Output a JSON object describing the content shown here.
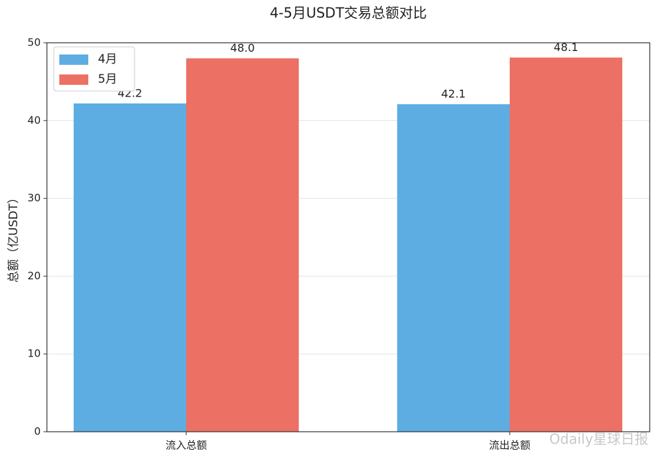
{
  "chart_data": {
    "type": "bar",
    "title": "4-5月USDT交易总额对比",
    "y_label": "总额（亿USDT）",
    "categories": [
      "流入总额",
      "流出总额"
    ],
    "series": [
      {
        "name": "4月",
        "color": "#5dade2",
        "values": [
          42.2,
          42.1
        ],
        "value_labels": [
          "42.2",
          "42.1"
        ]
      },
      {
        "name": "5月",
        "color": "#ec7063",
        "values": [
          48.0,
          48.1
        ],
        "value_labels": [
          "48.0",
          "48.1"
        ]
      }
    ],
    "ylim": [
      0,
      50
    ],
    "yticks": [
      0,
      10,
      20,
      30,
      40,
      50
    ],
    "grid": true,
    "legend": "upper left",
    "watermark": "Odaily星球日报"
  }
}
